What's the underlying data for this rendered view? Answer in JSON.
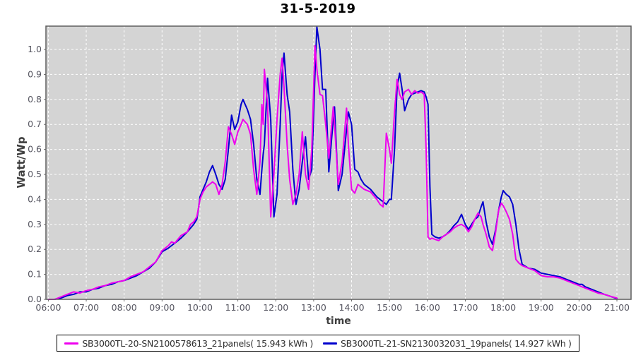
{
  "chart_data": {
    "type": "line",
    "title": "31-5-2019",
    "xlabel": "time",
    "ylabel": "Watt/Wp",
    "x_ticks": [
      "06:00",
      "07:00",
      "08:00",
      "09:00",
      "10:00",
      "11:00",
      "12:00",
      "13:00",
      "14:00",
      "15:00",
      "16:00",
      "17:00",
      "18:00",
      "19:00",
      "20:00",
      "21:00"
    ],
    "y_ticks": [
      "0.0",
      "0.1",
      "0.2",
      "0.3",
      "0.4",
      "0.5",
      "0.6",
      "0.7",
      "0.8",
      "0.9",
      "1.0"
    ],
    "ylim": [
      0,
      1.093
    ],
    "xlim_hours": [
      6,
      21.37
    ],
    "grid": "white dashed major gridlines on gray plot background",
    "legend_position": "bottom-center",
    "colors": {
      "plot_background": "#d4d4d4",
      "gridline": "#ffffff",
      "plot_border": "#5f5f5f",
      "tick_label": "#555560",
      "axis_label": "#3f3f3f",
      "title": "#000000"
    },
    "series": [
      {
        "name": "SB3000TL-20-SN2100578613_21panels( 15.943 kWh )",
        "color": "#ee00ee"
      },
      {
        "name": "SB3000TL-21-SN2130032031_19panels( 14.927 kWh )",
        "color": "#0000cd"
      }
    ],
    "points_format": [
      "time",
      "SB3000TL-20 (magenta) Watt/Wp",
      "SB3000TL-21 (blue) Watt/Wp"
    ],
    "points": [
      [
        "06:00",
        0.0,
        0.0
      ],
      [
        "06:10",
        0.0,
        0.0
      ],
      [
        "06:20",
        0.01,
        0.005
      ],
      [
        "06:30",
        0.02,
        0.015
      ],
      [
        "06:40",
        0.03,
        0.02
      ],
      [
        "06:50",
        0.025,
        0.03
      ],
      [
        "07:00",
        0.035,
        0.03
      ],
      [
        "07:10",
        0.04,
        0.04
      ],
      [
        "07:20",
        0.05,
        0.045
      ],
      [
        "07:30",
        0.055,
        0.055
      ],
      [
        "07:40",
        0.065,
        0.06
      ],
      [
        "07:50",
        0.07,
        0.07
      ],
      [
        "08:00",
        0.075,
        0.075
      ],
      [
        "08:10",
        0.09,
        0.085
      ],
      [
        "08:20",
        0.1,
        0.095
      ],
      [
        "08:30",
        0.11,
        0.11
      ],
      [
        "08:40",
        0.13,
        0.125
      ],
      [
        "08:50",
        0.15,
        0.15
      ],
      [
        "09:00",
        0.195,
        0.19
      ],
      [
        "09:10",
        0.215,
        0.205
      ],
      [
        "09:15",
        0.23,
        0.215
      ],
      [
        "09:20",
        0.225,
        0.225
      ],
      [
        "09:30",
        0.255,
        0.245
      ],
      [
        "09:40",
        0.27,
        0.27
      ],
      [
        "09:45",
        0.3,
        0.285
      ],
      [
        "09:50",
        0.31,
        0.3
      ],
      [
        "09:55",
        0.33,
        0.32
      ],
      [
        "09:58",
        0.37,
        0.37
      ],
      [
        "10:00",
        0.4,
        0.41
      ],
      [
        "10:05",
        0.43,
        0.44
      ],
      [
        "10:10",
        0.45,
        0.47
      ],
      [
        "10:15",
        0.46,
        0.51
      ],
      [
        "10:20",
        0.47,
        0.535
      ],
      [
        "10:25",
        0.46,
        0.5
      ],
      [
        "10:30",
        0.42,
        0.46
      ],
      [
        "10:35",
        0.46,
        0.44
      ],
      [
        "10:40",
        0.55,
        0.48
      ],
      [
        "10:45",
        0.69,
        0.6
      ],
      [
        "10:50",
        0.66,
        0.737
      ],
      [
        "10:55",
        0.62,
        0.68
      ],
      [
        "11:00",
        0.67,
        0.71
      ],
      [
        "11:05",
        0.7,
        0.78
      ],
      [
        "11:08",
        0.72,
        0.8
      ],
      [
        "11:15",
        0.7,
        0.76
      ],
      [
        "11:20",
        0.66,
        0.72
      ],
      [
        "11:25",
        0.52,
        0.62
      ],
      [
        "11:30",
        0.42,
        0.48
      ],
      [
        "11:35",
        0.55,
        0.42
      ],
      [
        "11:38",
        0.78,
        0.52
      ],
      [
        "11:40",
        0.7,
        0.58
      ],
      [
        "11:42",
        0.92,
        0.62
      ],
      [
        "11:47",
        0.78,
        0.885
      ],
      [
        "11:52",
        0.33,
        0.72
      ],
      [
        "11:57",
        0.5,
        0.33
      ],
      [
        "12:02",
        0.72,
        0.42
      ],
      [
        "12:07",
        0.9,
        0.7
      ],
      [
        "12:10",
        0.965,
        0.9
      ],
      [
        "12:13",
        0.85,
        0.985
      ],
      [
        "12:18",
        0.62,
        0.82
      ],
      [
        "12:22",
        0.48,
        0.75
      ],
      [
        "12:27",
        0.38,
        0.52
      ],
      [
        "12:32",
        0.42,
        0.38
      ],
      [
        "12:37",
        0.5,
        0.44
      ],
      [
        "12:42",
        0.67,
        0.55
      ],
      [
        "12:47",
        0.5,
        0.65
      ],
      [
        "12:52",
        0.44,
        0.48
      ],
      [
        "12:57",
        0.6,
        0.52
      ],
      [
        "13:02",
        1.015,
        0.9
      ],
      [
        "13:05",
        0.92,
        1.09
      ],
      [
        "13:10",
        0.82,
        1.0
      ],
      [
        "13:14",
        0.815,
        0.84
      ],
      [
        "13:19",
        0.7,
        0.84
      ],
      [
        "13:24",
        0.565,
        0.51
      ],
      [
        "13:31",
        0.77,
        0.72
      ],
      [
        "13:33",
        0.7,
        0.77
      ],
      [
        "13:39",
        0.46,
        0.435
      ],
      [
        "13:45",
        0.55,
        0.5
      ],
      [
        "13:52",
        0.765,
        0.68
      ],
      [
        "13:55",
        0.62,
        0.75
      ],
      [
        "14:00",
        0.44,
        0.7
      ],
      [
        "14:05",
        0.425,
        0.52
      ],
      [
        "14:10",
        0.46,
        0.51
      ],
      [
        "14:15",
        0.45,
        0.48
      ],
      [
        "14:20",
        0.44,
        0.46
      ],
      [
        "14:30",
        0.43,
        0.44
      ],
      [
        "14:40",
        0.4,
        0.41
      ],
      [
        "14:45",
        0.38,
        0.4
      ],
      [
        "14:50",
        0.37,
        0.39
      ],
      [
        "14:55",
        0.665,
        0.38
      ],
      [
        "15:00",
        0.6,
        0.4
      ],
      [
        "15:03",
        0.545,
        0.4
      ],
      [
        "15:08",
        0.75,
        0.6
      ],
      [
        "15:12",
        0.88,
        0.85
      ],
      [
        "15:16",
        0.82,
        0.905
      ],
      [
        "15:20",
        0.8,
        0.84
      ],
      [
        "15:24",
        0.83,
        0.755
      ],
      [
        "15:30",
        0.84,
        0.8
      ],
      [
        "15:35",
        0.82,
        0.82
      ],
      [
        "15:40",
        0.835,
        0.825
      ],
      [
        "15:45",
        0.825,
        0.83
      ],
      [
        "15:50",
        0.83,
        0.835
      ],
      [
        "15:55",
        0.82,
        0.83
      ],
      [
        "15:58",
        0.6,
        0.81
      ],
      [
        "16:01",
        0.25,
        0.78
      ],
      [
        "16:04",
        0.24,
        0.45
      ],
      [
        "16:07",
        0.245,
        0.26
      ],
      [
        "16:12",
        0.24,
        0.25
      ],
      [
        "16:18",
        0.235,
        0.245
      ],
      [
        "16:24",
        0.25,
        0.25
      ],
      [
        "16:30",
        0.26,
        0.26
      ],
      [
        "16:36",
        0.27,
        0.275
      ],
      [
        "16:42",
        0.285,
        0.295
      ],
      [
        "16:48",
        0.295,
        0.31
      ],
      [
        "16:54",
        0.3,
        0.34
      ],
      [
        "17:00",
        0.29,
        0.3
      ],
      [
        "17:05",
        0.27,
        0.28
      ],
      [
        "17:10",
        0.29,
        0.3
      ],
      [
        "17:15",
        0.32,
        0.32
      ],
      [
        "17:20",
        0.345,
        0.33
      ],
      [
        "17:25",
        0.33,
        0.37
      ],
      [
        "17:28",
        0.3,
        0.39
      ],
      [
        "17:33",
        0.26,
        0.31
      ],
      [
        "17:38",
        0.21,
        0.25
      ],
      [
        "17:43",
        0.195,
        0.22
      ],
      [
        "17:48",
        0.27,
        0.28
      ],
      [
        "17:53",
        0.36,
        0.36
      ],
      [
        "17:57",
        0.385,
        0.41
      ],
      [
        "18:00",
        0.375,
        0.435
      ],
      [
        "18:05",
        0.35,
        0.42
      ],
      [
        "18:10",
        0.32,
        0.41
      ],
      [
        "18:15",
        0.26,
        0.38
      ],
      [
        "18:20",
        0.16,
        0.3
      ],
      [
        "18:25",
        0.145,
        0.2
      ],
      [
        "18:30",
        0.135,
        0.14
      ],
      [
        "18:40",
        0.125,
        0.125
      ],
      [
        "18:50",
        0.115,
        0.12
      ],
      [
        "19:00",
        0.095,
        0.105
      ],
      [
        "19:10",
        0.09,
        0.1
      ],
      [
        "19:20",
        0.09,
        0.095
      ],
      [
        "19:30",
        0.085,
        0.09
      ],
      [
        "19:40",
        0.075,
        0.08
      ],
      [
        "19:50",
        0.065,
        0.07
      ],
      [
        "20:00",
        0.055,
        0.06
      ],
      [
        "20:05",
        0.05,
        0.06
      ],
      [
        "20:10",
        0.045,
        0.05
      ],
      [
        "20:20",
        0.035,
        0.04
      ],
      [
        "20:30",
        0.025,
        0.03
      ],
      [
        "20:40",
        0.02,
        0.02
      ],
      [
        "20:50",
        0.012,
        0.012
      ],
      [
        "21:00",
        0.005,
        0.003
      ]
    ]
  }
}
